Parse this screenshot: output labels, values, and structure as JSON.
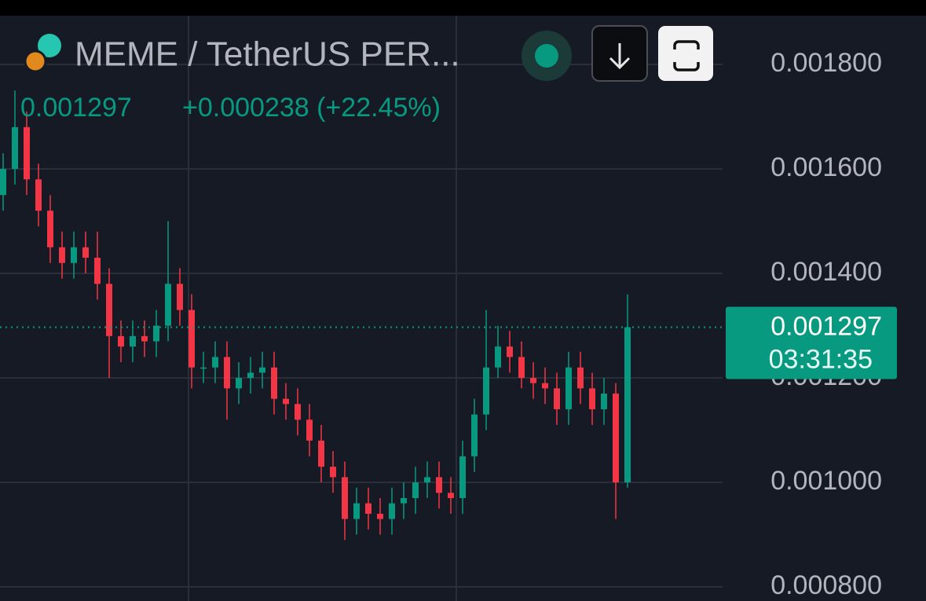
{
  "chart_data": {
    "type": "candlestick",
    "title": "MEME / TetherUS PER...",
    "last_price": 0.001297,
    "change_label": "+0.000238 (+22.45%)",
    "countdown": "03:31:35",
    "up_color": "#089981",
    "down_color": "#f23645",
    "grid": true,
    "ylim": [
      0.00077,
      0.0019
    ],
    "yticks": [
      {
        "value": 0.0008,
        "label": "0.000800"
      },
      {
        "value": 0.001,
        "label": "0.001000"
      },
      {
        "value": 0.0012,
        "label": "0.001200"
      },
      {
        "value": 0.0014,
        "label": "0.001400"
      },
      {
        "value": 0.0016,
        "label": "0.001600"
      },
      {
        "value": 0.0018,
        "label": "0.001800"
      }
    ],
    "open": [
      0.00155,
      0.0016,
      0.00168,
      0.00158,
      0.00152,
      0.00145,
      0.00142,
      0.00145,
      0.00143,
      0.00138,
      0.00128,
      0.00126,
      0.00128,
      0.00127,
      0.0013,
      0.00138,
      0.00133,
      0.00122,
      0.00122,
      0.00124,
      0.00118,
      0.0012,
      0.00121,
      0.00122,
      0.00116,
      0.00115,
      0.00112,
      0.00108,
      0.00103,
      0.00101,
      0.00093,
      0.00096,
      0.00094,
      0.00093,
      0.00096,
      0.00097,
      0.001,
      0.00101,
      0.00098,
      0.00097,
      0.00105,
      0.00113,
      0.00122,
      0.00126,
      0.00124,
      0.0012,
      0.00119,
      0.00118,
      0.00114,
      0.00122,
      0.00118,
      0.00114,
      0.00117,
      0.001
    ],
    "high": [
      0.00163,
      0.00175,
      0.00171,
      0.00161,
      0.00155,
      0.00148,
      0.00148,
      0.00148,
      0.00148,
      0.00141,
      0.00131,
      0.00131,
      0.00131,
      0.00133,
      0.0015,
      0.00141,
      0.00136,
      0.00125,
      0.00127,
      0.00127,
      0.00123,
      0.00124,
      0.00125,
      0.00125,
      0.00119,
      0.00118,
      0.00115,
      0.00111,
      0.00106,
      0.00104,
      0.00099,
      0.00099,
      0.00097,
      0.00099,
      0.001,
      0.00103,
      0.00104,
      0.00104,
      0.00101,
      0.00108,
      0.00116,
      0.00133,
      0.0013,
      0.00129,
      0.00127,
      0.00123,
      0.00122,
      0.00121,
      0.00125,
      0.00125,
      0.00121,
      0.0012,
      0.00119,
      0.00136
    ],
    "low": [
      0.00152,
      0.00157,
      0.00155,
      0.00149,
      0.00142,
      0.00139,
      0.00139,
      0.0014,
      0.00135,
      0.0012,
      0.00123,
      0.00123,
      0.00124,
      0.00124,
      0.00127,
      0.0013,
      0.00118,
      0.00119,
      0.00119,
      0.00112,
      0.00115,
      0.00117,
      0.00118,
      0.00113,
      0.00112,
      0.00109,
      0.00105,
      0.001,
      0.00098,
      0.00089,
      0.0009,
      0.00091,
      0.0009,
      0.0009,
      0.00093,
      0.00094,
      0.00097,
      0.00095,
      0.00094,
      0.00094,
      0.00102,
      0.0011,
      0.0012,
      0.00121,
      0.00118,
      0.00116,
      0.00115,
      0.00111,
      0.00111,
      0.00115,
      0.00111,
      0.00111,
      0.00093,
      0.00099
    ],
    "close": [
      0.0016,
      0.00168,
      0.00158,
      0.00152,
      0.00145,
      0.00142,
      0.00145,
      0.00143,
      0.00138,
      0.00128,
      0.00126,
      0.00128,
      0.00127,
      0.0013,
      0.00138,
      0.00133,
      0.00122,
      0.00122,
      0.00124,
      0.00118,
      0.0012,
      0.00121,
      0.00122,
      0.00116,
      0.00115,
      0.00112,
      0.00108,
      0.00103,
      0.00101,
      0.00093,
      0.00096,
      0.00094,
      0.00093,
      0.00096,
      0.00097,
      0.001,
      0.00101,
      0.00098,
      0.00097,
      0.00105,
      0.00113,
      0.00122,
      0.00126,
      0.00124,
      0.0012,
      0.00119,
      0.00118,
      0.00114,
      0.00122,
      0.00118,
      0.00114,
      0.00117,
      0.001,
      0.001297
    ]
  }
}
